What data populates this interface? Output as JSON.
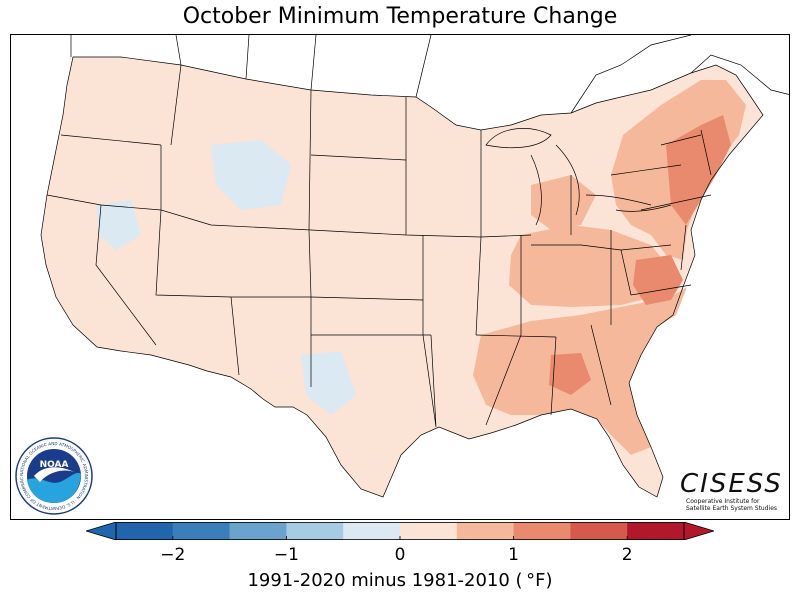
{
  "title": "October Minimum Temperature Change",
  "colorbar": {
    "label": "1991-2020 minus 1981-2010 ( °F)",
    "ticks": [
      {
        "value": -2,
        "label": "−2"
      },
      {
        "value": -1,
        "label": "−1"
      },
      {
        "value": 0,
        "label": "0"
      },
      {
        "value": 1,
        "label": "1"
      },
      {
        "value": 2,
        "label": "2"
      }
    ],
    "range": [
      -2.5,
      2.5
    ],
    "bins": [
      {
        "from": -2.5,
        "to": -2.0,
        "color": "#2166ac"
      },
      {
        "from": -2.0,
        "to": -1.5,
        "color": "#3a7fbb"
      },
      {
        "from": -1.5,
        "to": -1.0,
        "color": "#6ba3cf"
      },
      {
        "from": -1.0,
        "to": -0.5,
        "color": "#a6cbe3"
      },
      {
        "from": -0.5,
        "to": 0.0,
        "color": "#dbe9f3"
      },
      {
        "from": 0.0,
        "to": 0.5,
        "color": "#fbe3d6"
      },
      {
        "from": 0.5,
        "to": 1.0,
        "color": "#f6b89b"
      },
      {
        "from": 1.0,
        "to": 1.5,
        "color": "#e98a6e"
      },
      {
        "from": 1.5,
        "to": 2.0,
        "color": "#d45a4b"
      },
      {
        "from": 2.0,
        "to": 2.5,
        "color": "#b2182b"
      }
    ],
    "extend": "both"
  },
  "logos": {
    "noaa": {
      "text": "NOAA",
      "ring_text": "NATIONAL OCEANIC AND ATMOSPHERIC ADMINISTRATION · U.S. DEPARTMENT OF COMMERCE"
    },
    "cisess": {
      "word": "CISESS",
      "subtitle_line1": "Cooperative Institute for",
      "subtitle_line2": "Satellite Earth System Studies"
    }
  },
  "map": {
    "land_color": "#fbe3d6",
    "warm_color": "#f6b89b",
    "hot_color": "#e98a6e",
    "cool_color": "#dbe9f3",
    "border_color": "#000000"
  }
}
